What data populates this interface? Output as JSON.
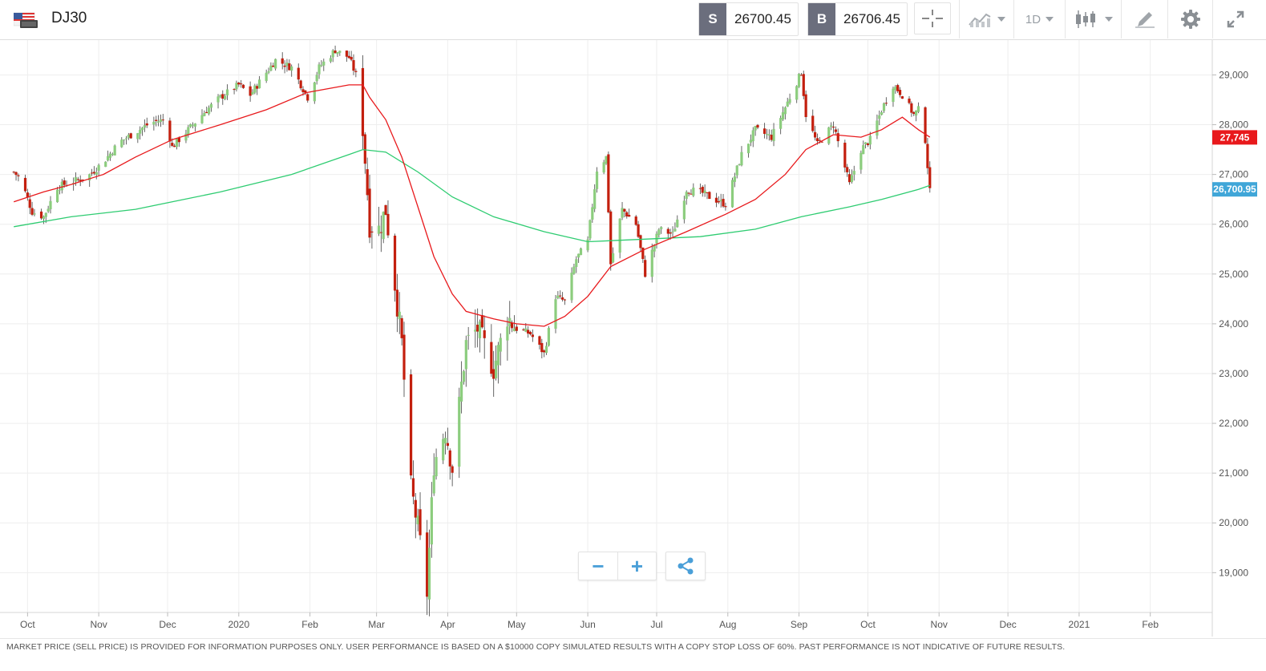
{
  "header": {
    "symbol": "DJ30",
    "flag_icon": "us-flag-icon",
    "sell": {
      "letter": "S",
      "value": "26700.45"
    },
    "buy": {
      "letter": "B",
      "value": "26706.45"
    },
    "interval_label": "1D",
    "tools": [
      "crosshair-icon",
      "chart-type-icon",
      "interval-select",
      "candles-icon",
      "draw-icon",
      "settings-icon",
      "fullscreen-icon"
    ]
  },
  "chart_data": {
    "type": "candlestick",
    "x_labels": [
      "Oct",
      "Nov",
      "Dec",
      "2020",
      "Feb",
      "Mar",
      "Apr",
      "May",
      "Jun",
      "Jul",
      "Aug",
      "Sep",
      "Oct",
      "Nov",
      "Dec",
      "2021",
      "Feb"
    ],
    "y_ticks": [
      "19,000",
      "20,000",
      "21,000",
      "22,000",
      "23,000",
      "24,000",
      "25,000",
      "26,000",
      "27,000",
      "28,000",
      "29,000"
    ],
    "y_tick_values": [
      19000,
      20000,
      21000,
      22000,
      23000,
      24000,
      25000,
      26000,
      27000,
      28000,
      29000
    ],
    "ylim": [
      18200,
      29700
    ],
    "grid": true,
    "close_series": [
      [
        "2019-09-25",
        27050
      ],
      [
        "2019-09-28",
        26900
      ],
      [
        "2019-10-03",
        26250
      ],
      [
        "2019-10-08",
        26150
      ],
      [
        "2019-10-14",
        26750
      ],
      [
        "2019-10-20",
        26850
      ],
      [
        "2019-10-27",
        26950
      ],
      [
        "2019-11-03",
        27250
      ],
      [
        "2019-11-10",
        27650
      ],
      [
        "2019-11-17",
        27850
      ],
      [
        "2019-11-24",
        28050
      ],
      [
        "2019-11-30",
        28100
      ],
      [
        "2019-12-03",
        27550
      ],
      [
        "2019-12-10",
        27900
      ],
      [
        "2019-12-17",
        28250
      ],
      [
        "2019-12-24",
        28550
      ],
      [
        "2020-01-01",
        28800
      ],
      [
        "2020-01-06",
        28600
      ],
      [
        "2020-01-13",
        29050
      ],
      [
        "2020-01-17",
        29300
      ],
      [
        "2020-01-24",
        29150
      ],
      [
        "2020-01-31",
        28550
      ],
      [
        "2020-02-05",
        29150
      ],
      [
        "2020-02-12",
        29500
      ],
      [
        "2020-02-18",
        29350
      ],
      [
        "2020-02-21",
        29000
      ],
      [
        "2020-02-24",
        27950
      ],
      [
        "2020-02-27",
        26000
      ],
      [
        "2020-03-02",
        25900
      ],
      [
        "2020-03-05",
        26300
      ],
      [
        "2020-03-09",
        24800
      ],
      [
        "2020-03-12",
        23600
      ],
      [
        "2020-03-16",
        20700
      ],
      [
        "2020-03-19",
        19900
      ],
      [
        "2020-03-23",
        18600
      ],
      [
        "2020-03-26",
        21200
      ],
      [
        "2020-03-31",
        21900
      ],
      [
        "2020-04-03",
        21100
      ],
      [
        "2020-04-09",
        23600
      ],
      [
        "2020-04-14",
        23900
      ],
      [
        "2020-04-21",
        23100
      ],
      [
        "2020-04-27",
        24150
      ],
      [
        "2020-05-01",
        23900
      ],
      [
        "2020-05-07",
        23800
      ],
      [
        "2020-05-13",
        23400
      ],
      [
        "2020-05-18",
        24550
      ],
      [
        "2020-05-22",
        24450
      ],
      [
        "2020-05-27",
        25300
      ],
      [
        "2020-06-01",
        25650
      ],
      [
        "2020-06-05",
        27100
      ],
      [
        "2020-06-09",
        27350
      ],
      [
        "2020-06-11",
        25200
      ],
      [
        "2020-06-16",
        26300
      ],
      [
        "2020-06-22",
        26000
      ],
      [
        "2020-06-26",
        25000
      ],
      [
        "2020-07-02",
        25900
      ],
      [
        "2020-07-08",
        25800
      ],
      [
        "2020-07-14",
        26700
      ],
      [
        "2020-07-20",
        26650
      ],
      [
        "2020-07-24",
        26550
      ],
      [
        "2020-07-31",
        26400
      ],
      [
        "2020-08-07",
        27400
      ],
      [
        "2020-08-13",
        27900
      ],
      [
        "2020-08-20",
        27750
      ],
      [
        "2020-08-26",
        28350
      ],
      [
        "2020-09-02",
        29050
      ],
      [
        "2020-09-04",
        28200
      ],
      [
        "2020-09-09",
        27600
      ],
      [
        "2020-09-16",
        28000
      ],
      [
        "2020-09-23",
        26800
      ],
      [
        "2020-09-28",
        27500
      ],
      [
        "2020-10-02",
        27700
      ],
      [
        "2020-10-07",
        28300
      ],
      [
        "2020-10-12",
        28800
      ],
      [
        "2020-10-16",
        28600
      ],
      [
        "2020-10-21",
        28200
      ],
      [
        "2020-10-23",
        28300
      ],
      [
        "2020-10-26",
        27700
      ],
      [
        "2020-10-28",
        26650
      ]
    ],
    "ma_red": [
      [
        "2019-09-25",
        26450
      ],
      [
        "2019-10-08",
        26650
      ],
      [
        "2019-10-20",
        26800
      ],
      [
        "2019-11-03",
        27000
      ],
      [
        "2019-11-17",
        27350
      ],
      [
        "2019-12-03",
        27700
      ],
      [
        "2019-12-24",
        28000
      ],
      [
        "2020-01-13",
        28300
      ],
      [
        "2020-01-31",
        28650
      ],
      [
        "2020-02-18",
        28800
      ],
      [
        "2020-02-24",
        28800
      ],
      [
        "2020-02-27",
        28550
      ],
      [
        "2020-03-05",
        28100
      ],
      [
        "2020-03-12",
        27350
      ],
      [
        "2020-03-19",
        26350
      ],
      [
        "2020-03-26",
        25350
      ],
      [
        "2020-04-03",
        24600
      ],
      [
        "2020-04-09",
        24250
      ],
      [
        "2020-04-21",
        24100
      ],
      [
        "2020-05-01",
        24000
      ],
      [
        "2020-05-13",
        23950
      ],
      [
        "2020-05-22",
        24150
      ],
      [
        "2020-06-01",
        24550
      ],
      [
        "2020-06-11",
        25150
      ],
      [
        "2020-06-26",
        25500
      ],
      [
        "2020-07-14",
        25850
      ],
      [
        "2020-07-31",
        26200
      ],
      [
        "2020-08-13",
        26500
      ],
      [
        "2020-08-26",
        27000
      ],
      [
        "2020-09-04",
        27500
      ],
      [
        "2020-09-16",
        27800
      ],
      [
        "2020-09-28",
        27750
      ],
      [
        "2020-10-07",
        27900
      ],
      [
        "2020-10-16",
        28150
      ],
      [
        "2020-10-23",
        27900
      ],
      [
        "2020-10-28",
        27750
      ]
    ],
    "ma_green": [
      [
        "2019-09-25",
        25950
      ],
      [
        "2019-10-20",
        26150
      ],
      [
        "2019-11-17",
        26300
      ],
      [
        "2019-12-24",
        26650
      ],
      [
        "2020-01-24",
        27000
      ],
      [
        "2020-02-18",
        27400
      ],
      [
        "2020-02-24",
        27500
      ],
      [
        "2020-03-05",
        27450
      ],
      [
        "2020-03-19",
        27050
      ],
      [
        "2020-04-03",
        26550
      ],
      [
        "2020-04-21",
        26150
      ],
      [
        "2020-05-13",
        25850
      ],
      [
        "2020-06-01",
        25650
      ],
      [
        "2020-06-26",
        25700
      ],
      [
        "2020-07-20",
        25750
      ],
      [
        "2020-08-13",
        25900
      ],
      [
        "2020-09-02",
        26150
      ],
      [
        "2020-09-23",
        26350
      ],
      [
        "2020-10-07",
        26500
      ],
      [
        "2020-10-23",
        26700
      ],
      [
        "2020-10-28",
        26780
      ]
    ],
    "price_tags": [
      {
        "label": "27,745",
        "value": 27745,
        "color": "#e8191c"
      },
      {
        "label": "26,700.95",
        "value": 26700.95,
        "color": "#40a6d8"
      }
    ],
    "colors": {
      "up": "#8ccd7e",
      "down": "#c31f0e",
      "ma_red": "#e8191c",
      "ma_green": "#2ecc71",
      "grid": "#eeeeee"
    }
  },
  "controls": {
    "zoom_out_label": "−",
    "zoom_in_label": "+",
    "share_icon": "share-icon"
  },
  "footer": {
    "disclaimer": "MARKET PRICE (SELL PRICE) IS PROVIDED FOR INFORMATION PURPOSES ONLY. USER PERFORMANCE IS BASED ON A $10000 COPY SIMULATED RESULTS WITH A COPY STOP LOSS OF 60%. PAST PERFORMANCE IS NOT INDICATIVE OF FUTURE RESULTS."
  }
}
